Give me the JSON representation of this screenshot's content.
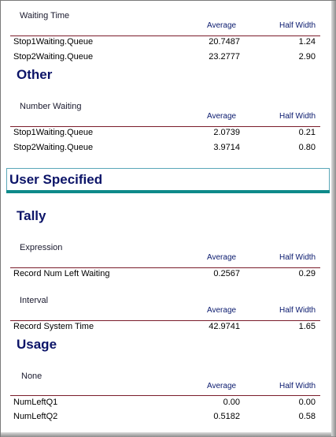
{
  "col_average": "Average",
  "col_halfwidth": "Half Width",
  "waiting_time": {
    "title": "Waiting Time",
    "rows": [
      {
        "name": "Stop1Waiting.Queue",
        "avg": "20.7487",
        "hw": "1.24"
      },
      {
        "name": "Stop2Waiting.Queue",
        "avg": "23.2777",
        "hw": "2.90"
      }
    ]
  },
  "other": {
    "heading": "Other",
    "group_title": "Number Waiting",
    "rows": [
      {
        "name": "Stop1Waiting.Queue",
        "avg": "2.0739",
        "hw": "0.21"
      },
      {
        "name": "Stop2Waiting.Queue",
        "avg": "3.9714",
        "hw": "0.80"
      }
    ]
  },
  "user_specified": {
    "heading": "User Specified"
  },
  "tally": {
    "heading": "Tally",
    "expression": {
      "title": "Expression",
      "rows": [
        {
          "name": "Record Num Left Waiting",
          "avg": "0.2567",
          "hw": "0.29"
        }
      ]
    },
    "interval": {
      "title": "Interval",
      "rows": [
        {
          "name": "Record System Time",
          "avg": "42.9741",
          "hw": "1.65"
        }
      ]
    }
  },
  "usage": {
    "heading": "Usage",
    "group_title": "None",
    "rows": [
      {
        "name": "NumLeftQ1",
        "avg": "0.00",
        "hw": "0.00"
      },
      {
        "name": "NumLeftQ2",
        "avg": "0.5182",
        "hw": "0.58"
      }
    ]
  }
}
